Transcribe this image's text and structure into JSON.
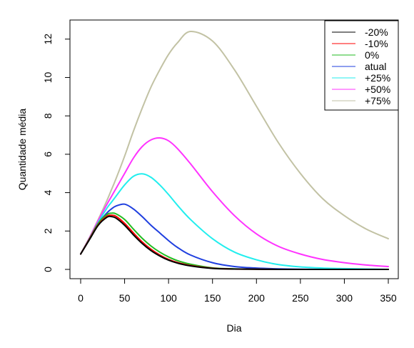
{
  "chart_data": {
    "type": "line",
    "title": "",
    "xlabel": "Dia",
    "ylabel": "Quantidade média",
    "xlim": [
      0,
      350
    ],
    "ylim": [
      0,
      12.4
    ],
    "xticks": [
      0,
      50,
      100,
      150,
      200,
      250,
      300,
      350
    ],
    "yticks": [
      0,
      2,
      4,
      6,
      8,
      10,
      12
    ],
    "grid": false,
    "legend_position": "top-right",
    "x": [
      0,
      10,
      20,
      30,
      35,
      40,
      50,
      60,
      70,
      80,
      90,
      100,
      110,
      125,
      150,
      175,
      200,
      225,
      250,
      275,
      300,
      325,
      350
    ],
    "series": [
      {
        "name": "-20%",
        "color": "#000000",
        "values": [
          0.8,
          1.55,
          2.3,
          2.72,
          2.75,
          2.68,
          2.3,
          1.8,
          1.35,
          0.98,
          0.7,
          0.48,
          0.33,
          0.18,
          0.05,
          0.02,
          0.01,
          0.0,
          0.0,
          0.0,
          0.0,
          0.0,
          0.0
        ]
      },
      {
        "name": "-10%",
        "color": "#ff0000",
        "values": [
          0.8,
          1.57,
          2.33,
          2.77,
          2.82,
          2.77,
          2.4,
          1.9,
          1.43,
          1.05,
          0.75,
          0.52,
          0.36,
          0.2,
          0.06,
          0.02,
          0.01,
          0.0,
          0.0,
          0.0,
          0.0,
          0.0,
          0.0
        ]
      },
      {
        "name": "0%",
        "color": "#22bb22",
        "values": [
          0.8,
          1.6,
          2.4,
          2.86,
          2.93,
          2.9,
          2.6,
          2.1,
          1.62,
          1.22,
          0.9,
          0.65,
          0.46,
          0.27,
          0.08,
          0.03,
          0.01,
          0.0,
          0.0,
          0.0,
          0.0,
          0.0,
          0.0
        ]
      },
      {
        "name": "atual",
        "color": "#1f3fdf",
        "values": [
          0.8,
          1.6,
          2.4,
          2.95,
          3.15,
          3.3,
          3.4,
          3.15,
          2.75,
          2.3,
          1.9,
          1.5,
          1.15,
          0.75,
          0.35,
          0.15,
          0.07,
          0.03,
          0.01,
          0.0,
          0.0,
          0.0,
          0.0
        ]
      },
      {
        "name": "+25%",
        "color": "#22eeee",
        "values": [
          0.8,
          1.6,
          2.45,
          3.2,
          3.5,
          3.8,
          4.4,
          4.85,
          4.98,
          4.8,
          4.4,
          3.9,
          3.35,
          2.6,
          1.6,
          0.9,
          0.5,
          0.25,
          0.13,
          0.07,
          0.04,
          0.02,
          0.0
        ]
      },
      {
        "name": "+50%",
        "color": "#ff33ff",
        "values": [
          0.8,
          1.65,
          2.55,
          3.4,
          3.8,
          4.2,
          5.0,
          5.8,
          6.4,
          6.75,
          6.85,
          6.7,
          6.3,
          5.5,
          4.05,
          2.8,
          1.85,
          1.2,
          0.8,
          0.52,
          0.35,
          0.23,
          0.15
        ]
      },
      {
        "name": "+75%",
        "color": "#c2c2a4",
        "values": [
          0.8,
          1.65,
          2.6,
          3.6,
          4.15,
          4.7,
          5.9,
          7.2,
          8.4,
          9.5,
          10.4,
          11.2,
          11.8,
          12.4,
          11.9,
          10.4,
          8.5,
          6.6,
          5.0,
          3.7,
          2.8,
          2.1,
          1.6
        ]
      }
    ]
  }
}
